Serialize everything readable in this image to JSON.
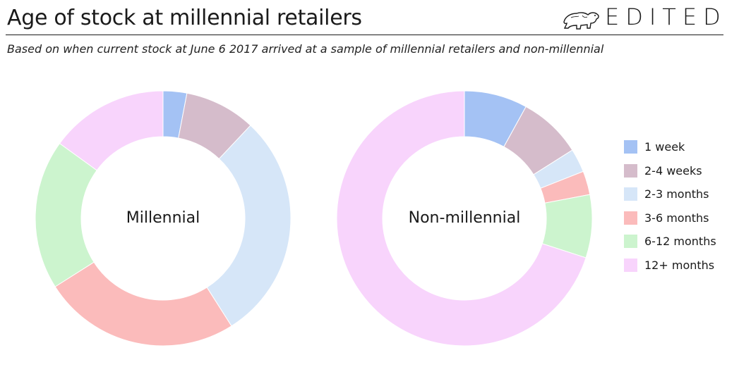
{
  "header": {
    "title": "Age of stock at millennial retailers",
    "subtitle": "Based on when current stock at June 6 2017 arrived at a sample of millennial retailers and non-millennial",
    "logo_text": "EDITED"
  },
  "chart_data": [
    {
      "type": "donut",
      "title": "Millennial",
      "categories": [
        "1 week",
        "2-4 weeks",
        "2-3 months",
        "3-6 months",
        "6-12 months",
        "12+ months"
      ],
      "values": [
        3,
        9,
        29,
        25,
        19,
        15
      ],
      "unit": "percent (estimated)"
    },
    {
      "type": "donut",
      "title": "Non-millennial",
      "categories": [
        "1 week",
        "2-4 weeks",
        "2-3 months",
        "3-6 months",
        "6-12 months",
        "12+ months"
      ],
      "values": [
        8,
        8,
        3,
        3,
        8,
        70
      ],
      "unit": "percent (estimated)"
    }
  ],
  "legend": {
    "placement": "right",
    "items": [
      {
        "label": "1 week",
        "color": "#a4c2f4"
      },
      {
        "label": "2-4 weeks",
        "color": "#d5bccb"
      },
      {
        "label": "2-3 months",
        "color": "#d6e6f8"
      },
      {
        "label": "3-6 months",
        "color": "#fbbbbb"
      },
      {
        "label": "6-12 months",
        "color": "#ccf4ce"
      },
      {
        "label": "12+ months",
        "color": "#f8d4fc"
      }
    ]
  }
}
